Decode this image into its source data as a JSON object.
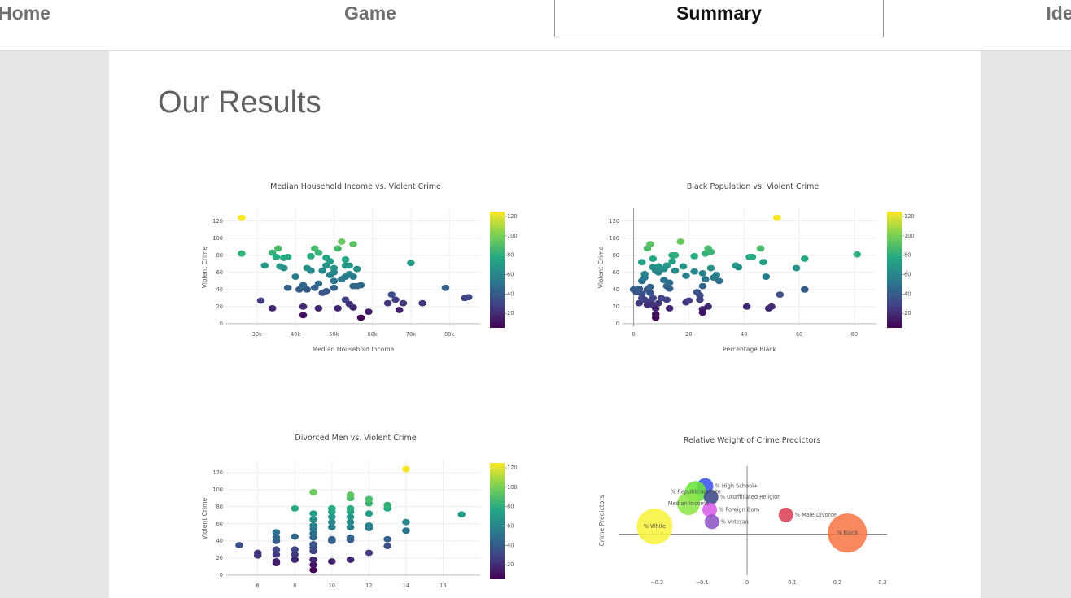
{
  "nav": {
    "items": [
      {
        "label": "Home"
      },
      {
        "label": "Game"
      },
      {
        "label": "Summary"
      },
      {
        "label": "Ide"
      }
    ]
  },
  "page": {
    "title": "Our Results"
  },
  "colorbar_ticks": [
    "20",
    "40",
    "60",
    "80",
    "100",
    "120"
  ],
  "chart_data": [
    {
      "type": "scatter",
      "title": "Median Household Income vs. Violent Crime",
      "xlabel": "Median Household Income",
      "ylabel": "Violent Crime",
      "xlim": [
        22000,
        88000
      ],
      "ylim": [
        -3,
        135
      ],
      "xticks": [
        30000,
        40000,
        50000,
        60000,
        70000,
        80000
      ],
      "xticklabels": [
        "30k",
        "40k",
        "50k",
        "60k",
        "70k",
        "80k"
      ],
      "yticks": [
        0,
        20,
        40,
        60,
        80,
        100,
        120
      ],
      "colorscale": "viridis",
      "color_range": [
        5,
        125
      ],
      "points": [
        [
          26000,
          124
        ],
        [
          26000,
          82
        ],
        [
          31000,
          27
        ],
        [
          32000,
          68
        ],
        [
          34000,
          18
        ],
        [
          34000,
          83
        ],
        [
          35000,
          78
        ],
        [
          35500,
          88
        ],
        [
          36000,
          67
        ],
        [
          37000,
          77
        ],
        [
          37000,
          65
        ],
        [
          38000,
          78
        ],
        [
          38000,
          42
        ],
        [
          40000,
          55
        ],
        [
          41000,
          40
        ],
        [
          42000,
          45
        ],
        [
          42000,
          20
        ],
        [
          43000,
          40
        ],
        [
          42000,
          10
        ],
        [
          43000,
          65
        ],
        [
          44000,
          79
        ],
        [
          44000,
          62
        ],
        [
          45000,
          88
        ],
        [
          45000,
          42
        ],
        [
          46000,
          18
        ],
        [
          46000,
          47
        ],
        [
          46000,
          83
        ],
        [
          47000,
          62
        ],
        [
          47000,
          36
        ],
        [
          48000,
          38
        ],
        [
          48000,
          68
        ],
        [
          48000,
          77
        ],
        [
          49000,
          57
        ],
        [
          49000,
          73
        ],
        [
          50000,
          60
        ],
        [
          50000,
          50
        ],
        [
          50000,
          42
        ],
        [
          50000,
          65
        ],
        [
          51000,
          88
        ],
        [
          51000,
          18
        ],
        [
          52000,
          96
        ],
        [
          52000,
          52
        ],
        [
          53000,
          55
        ],
        [
          53000,
          28
        ],
        [
          53000,
          75
        ],
        [
          53000,
          68
        ],
        [
          54000,
          23
        ],
        [
          54000,
          68
        ],
        [
          54000,
          58
        ],
        [
          55000,
          93
        ],
        [
          55000,
          55
        ],
        [
          55000,
          44
        ],
        [
          55000,
          19
        ],
        [
          56000,
          44
        ],
        [
          56000,
          64
        ],
        [
          57000,
          45
        ],
        [
          57000,
          7
        ],
        [
          59000,
          14
        ],
        [
          64000,
          24
        ],
        [
          65000,
          34
        ],
        [
          66000,
          28
        ],
        [
          67000,
          16
        ],
        [
          68000,
          24
        ],
        [
          70000,
          71
        ],
        [
          73000,
          24
        ],
        [
          79000,
          42
        ],
        [
          84000,
          30
        ],
        [
          85000,
          31
        ]
      ]
    },
    {
      "type": "scatter",
      "title": "Black Population vs. Violent Crime",
      "xlabel": "Percentage Black",
      "ylabel": "Violent Crime",
      "xlim": [
        -4,
        88
      ],
      "ylim": [
        -3,
        135
      ],
      "xticks": [
        0,
        20,
        40,
        60,
        80
      ],
      "xticklabels": [
        "0",
        "20",
        "40",
        "60",
        "80"
      ],
      "yticks": [
        0,
        20,
        40,
        60,
        80,
        100,
        120
      ],
      "colorscale": "viridis",
      "color_range": [
        5,
        125
      ],
      "points": [
        [
          0,
          40
        ],
        [
          1,
          37
        ],
        [
          2,
          41
        ],
        [
          2,
          24
        ],
        [
          3,
          35
        ],
        [
          3,
          30
        ],
        [
          3,
          72
        ],
        [
          3,
          50
        ],
        [
          4,
          54
        ],
        [
          4,
          58
        ],
        [
          4,
          28
        ],
        [
          5,
          88
        ],
        [
          5,
          40
        ],
        [
          5,
          22
        ],
        [
          6,
          43
        ],
        [
          6,
          36
        ],
        [
          6,
          93
        ],
        [
          6,
          26
        ],
        [
          7,
          76
        ],
        [
          7,
          30
        ],
        [
          7,
          22
        ],
        [
          7,
          66
        ],
        [
          8,
          18
        ],
        [
          8,
          62
        ],
        [
          8,
          7
        ],
        [
          8,
          11
        ],
        [
          9,
          67
        ],
        [
          9,
          60
        ],
        [
          9,
          24
        ],
        [
          10,
          30
        ],
        [
          11,
          64
        ],
        [
          11,
          51
        ],
        [
          12,
          44
        ],
        [
          12,
          68
        ],
        [
          12,
          28
        ],
        [
          13,
          48
        ],
        [
          13,
          41
        ],
        [
          13,
          18
        ],
        [
          14,
          80
        ],
        [
          14,
          73
        ],
        [
          15,
          80
        ],
        [
          15,
          62
        ],
        [
          17,
          96
        ],
        [
          18,
          67
        ],
        [
          19,
          56
        ],
        [
          19,
          25
        ],
        [
          20,
          27
        ],
        [
          22,
          79
        ],
        [
          22,
          61
        ],
        [
          23,
          37
        ],
        [
          24,
          33
        ],
        [
          24,
          28
        ],
        [
          25,
          44
        ],
        [
          25,
          59
        ],
        [
          25,
          17
        ],
        [
          25,
          13
        ],
        [
          26,
          52
        ],
        [
          26,
          82
        ],
        [
          27,
          88
        ],
        [
          27,
          20
        ],
        [
          28,
          84
        ],
        [
          28,
          65
        ],
        [
          29,
          54
        ],
        [
          30,
          57
        ],
        [
          31,
          50
        ],
        [
          37,
          68
        ],
        [
          38,
          66
        ],
        [
          41,
          20
        ],
        [
          42,
          78
        ],
        [
          43,
          78
        ],
        [
          46,
          88
        ],
        [
          47,
          72
        ],
        [
          48,
          55
        ],
        [
          49,
          18
        ],
        [
          50,
          20
        ],
        [
          52,
          124
        ],
        [
          53,
          34
        ],
        [
          59,
          65
        ],
        [
          62,
          76
        ],
        [
          62,
          40
        ],
        [
          81,
          81
        ]
      ]
    },
    {
      "type": "scatter",
      "title": "Divorced Men vs. Violent Crime",
      "xlabel": "",
      "ylabel": "Violent Crime",
      "xlim": [
        4.3,
        18
      ],
      "ylim": [
        -3,
        135
      ],
      "xticks": [
        6,
        8,
        10,
        12,
        14,
        16
      ],
      "xticklabels": [
        "6",
        "8",
        "10",
        "12",
        "14",
        "16"
      ],
      "yticks": [
        0,
        20,
        40,
        60,
        80,
        100,
        120
      ],
      "colorscale": "viridis",
      "color_range": [
        5,
        125
      ],
      "points": [
        [
          5,
          35
        ],
        [
          6,
          26
        ],
        [
          6,
          23
        ],
        [
          7,
          14
        ],
        [
          7,
          16
        ],
        [
          7,
          24
        ],
        [
          7,
          40
        ],
        [
          7,
          44
        ],
        [
          7,
          50
        ],
        [
          7,
          30
        ],
        [
          8,
          24
        ],
        [
          8,
          30
        ],
        [
          8,
          18
        ],
        [
          8,
          45
        ],
        [
          8,
          78
        ],
        [
          9,
          6
        ],
        [
          9,
          12
        ],
        [
          9,
          18
        ],
        [
          9,
          28
        ],
        [
          9,
          32
        ],
        [
          9,
          36
        ],
        [
          9,
          44
        ],
        [
          9,
          49
        ],
        [
          9,
          54
        ],
        [
          9,
          58
        ],
        [
          9,
          65
        ],
        [
          9,
          72
        ],
        [
          9,
          97
        ],
        [
          10,
          16
        ],
        [
          10,
          40
        ],
        [
          10,
          42
        ],
        [
          10,
          56
        ],
        [
          10,
          62
        ],
        [
          10,
          68
        ],
        [
          10,
          74
        ],
        [
          10,
          78
        ],
        [
          11,
          18
        ],
        [
          11,
          41
        ],
        [
          11,
          44
        ],
        [
          11,
          56
        ],
        [
          11,
          62
        ],
        [
          11,
          68
        ],
        [
          11,
          74
        ],
        [
          11,
          78
        ],
        [
          11,
          90
        ],
        [
          11,
          94
        ],
        [
          12,
          26
        ],
        [
          12,
          55
        ],
        [
          12,
          58
        ],
        [
          12,
          72
        ],
        [
          12,
          84
        ],
        [
          12,
          89
        ],
        [
          13,
          34
        ],
        [
          13,
          42
        ],
        [
          13,
          78
        ],
        [
          13,
          82
        ],
        [
          14,
          52
        ],
        [
          14,
          62
        ],
        [
          14,
          124
        ],
        [
          17,
          71
        ]
      ]
    },
    {
      "type": "scatter",
      "title": "Relative Weight of Crime Predictors",
      "xlabel": "",
      "ylabel": "Crime Predictors",
      "xlim": [
        -0.285,
        0.31
      ],
      "ylim": [
        -1.0,
        2.0
      ],
      "xticks": [
        -0.2,
        -0.1,
        0,
        0.1,
        0.2,
        0.3
      ],
      "xticklabels": [
        "−0.2",
        "−0.1",
        "0",
        "0.1",
        "0.2",
        "0.3"
      ],
      "bubbles": [
        {
          "label": "% High School+",
          "x": -0.093,
          "y": 1.45,
          "r": 10,
          "color": "#3b55ee"
        },
        {
          "label": "% Republican Vote",
          "x": -0.114,
          "y": 1.3,
          "r": 13,
          "color": "#67e33a"
        },
        {
          "label": "% Unaffiliated Religion",
          "x": -0.08,
          "y": 1.15,
          "r": 9,
          "color": "#3d4a8a"
        },
        {
          "label": "Median Income",
          "x": -0.13,
          "y": 0.97,
          "r": 14,
          "color": "#8ee64a"
        },
        {
          "label": "% Foreign Born",
          "x": -0.083,
          "y": 0.8,
          "r": 9,
          "color": "#d85de8"
        },
        {
          "label": "% Male Divorce",
          "x": 0.086,
          "y": 0.66,
          "r": 9,
          "color": "#dc4158"
        },
        {
          "label": "% Veteran",
          "x": -0.078,
          "y": 0.47,
          "r": 9,
          "color": "#8d55c6"
        },
        {
          "label": "% White",
          "x": -0.205,
          "y": 0.34,
          "r": 22,
          "color": "#f7f23d"
        },
        {
          "label": "% Black",
          "x": 0.222,
          "y": 0.16,
          "r": 24,
          "color": "#f77748"
        }
      ]
    }
  ]
}
